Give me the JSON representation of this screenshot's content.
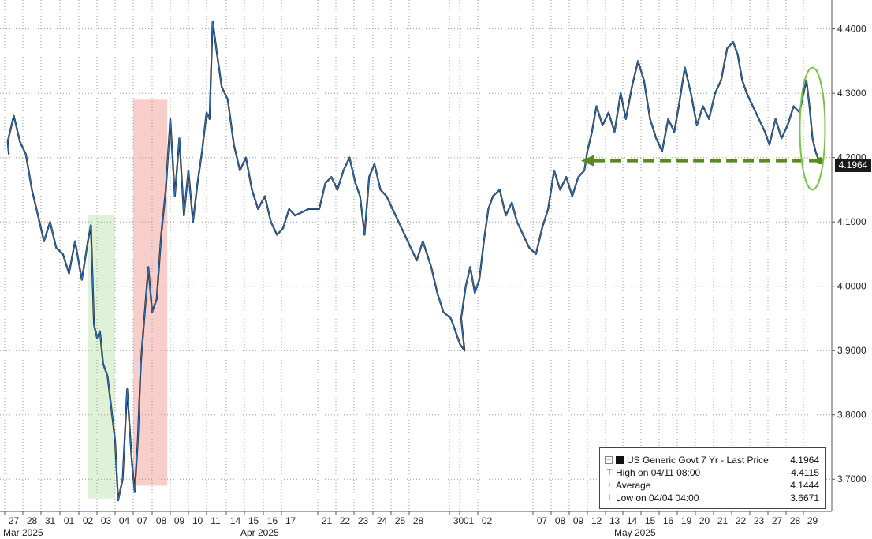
{
  "chart_data": {
    "type": "line",
    "series": [
      {
        "name": "US Generic Govt 7 Yr - Last Price",
        "color": "#2e6fb4",
        "points": [
          [
            "2025-03-26 20:00",
            4.205
          ],
          [
            "2025-03-27 04:00",
            4.225
          ],
          [
            "2025-03-27 12:00",
            4.265
          ],
          [
            "2025-03-27 20:00",
            4.225
          ],
          [
            "2025-03-28 04:00",
            4.205
          ],
          [
            "2025-03-28 12:00",
            4.15
          ],
          [
            "2025-03-28 20:00",
            4.11
          ],
          [
            "2025-03-31 04:00",
            4.07
          ],
          [
            "2025-03-31 12:00",
            4.1
          ],
          [
            "2025-03-31 20:00",
            4.06
          ],
          [
            "2025-04-01 04:00",
            4.05
          ],
          [
            "2025-04-01 12:00",
            4.02
          ],
          [
            "2025-04-01 20:00",
            4.07
          ],
          [
            "2025-04-02 04:00",
            4.01
          ],
          [
            "2025-04-02 12:00",
            4.07
          ],
          [
            "2025-04-02 16:00",
            4.095
          ],
          [
            "2025-04-02 20:00",
            3.94
          ],
          [
            "2025-04-03 00:00",
            3.92
          ],
          [
            "2025-04-03 04:00",
            3.93
          ],
          [
            "2025-04-03 08:00",
            3.88
          ],
          [
            "2025-04-03 14:00",
            3.86
          ],
          [
            "2025-04-03 20:00",
            3.8
          ],
          [
            "2025-04-04 00:00",
            3.76
          ],
          [
            "2025-04-04 04:00",
            3.6671
          ],
          [
            "2025-04-04 10:00",
            3.7
          ],
          [
            "2025-04-04 16:00",
            3.84
          ],
          [
            "2025-04-04 22:00",
            3.73
          ],
          [
            "2025-04-07 02:00",
            3.68
          ],
          [
            "2025-04-07 06:00",
            3.76
          ],
          [
            "2025-04-07 10:00",
            3.88
          ],
          [
            "2025-04-07 14:00",
            3.94
          ],
          [
            "2025-04-07 20:00",
            4.03
          ],
          [
            "2025-04-08 00:00",
            3.96
          ],
          [
            "2025-04-08 06:00",
            3.98
          ],
          [
            "2025-04-08 12:00",
            4.08
          ],
          [
            "2025-04-08 18:00",
            4.15
          ],
          [
            "2025-04-09 00:00",
            4.26
          ],
          [
            "2025-04-09 06:00",
            4.14
          ],
          [
            "2025-04-09 12:00",
            4.23
          ],
          [
            "2025-04-09 18:00",
            4.11
          ],
          [
            "2025-04-10 00:00",
            4.18
          ],
          [
            "2025-04-10 06:00",
            4.1
          ],
          [
            "2025-04-10 12:00",
            4.16
          ],
          [
            "2025-04-10 18:00",
            4.21
          ],
          [
            "2025-04-11 00:00",
            4.27
          ],
          [
            "2025-04-11 04:00",
            4.26
          ],
          [
            "2025-04-11 08:00",
            4.4115
          ],
          [
            "2025-04-11 14:00",
            4.36
          ],
          [
            "2025-04-11 20:00",
            4.31
          ],
          [
            "2025-04-14 02:00",
            4.29
          ],
          [
            "2025-04-14 10:00",
            4.22
          ],
          [
            "2025-04-14 18:00",
            4.18
          ],
          [
            "2025-04-15 02:00",
            4.2
          ],
          [
            "2025-04-15 10:00",
            4.15
          ],
          [
            "2025-04-15 18:00",
            4.12
          ],
          [
            "2025-04-16 02:00",
            4.14
          ],
          [
            "2025-04-16 10:00",
            4.1
          ],
          [
            "2025-04-16 18:00",
            4.08
          ],
          [
            "2025-04-17 02:00",
            4.09
          ],
          [
            "2025-04-17 10:00",
            4.12
          ],
          [
            "2025-04-17 18:00",
            4.11
          ],
          [
            "2025-04-18 12:00",
            4.12
          ],
          [
            "2025-04-21 02:00",
            4.12
          ],
          [
            "2025-04-21 10:00",
            4.16
          ],
          [
            "2025-04-21 18:00",
            4.17
          ],
          [
            "2025-04-22 02:00",
            4.15
          ],
          [
            "2025-04-22 10:00",
            4.18
          ],
          [
            "2025-04-22 18:00",
            4.2
          ],
          [
            "2025-04-23 02:00",
            4.16
          ],
          [
            "2025-04-23 08:00",
            4.14
          ],
          [
            "2025-04-23 14:00",
            4.08
          ],
          [
            "2025-04-23 20:00",
            4.17
          ],
          [
            "2025-04-24 02:00",
            4.19
          ],
          [
            "2025-04-24 10:00",
            4.15
          ],
          [
            "2025-04-24 18:00",
            4.14
          ],
          [
            "2025-04-25 02:00",
            4.12
          ],
          [
            "2025-04-25 10:00",
            4.1
          ],
          [
            "2025-04-25 18:00",
            4.08
          ],
          [
            "2025-04-28 02:00",
            4.06
          ],
          [
            "2025-04-28 10:00",
            4.04
          ],
          [
            "2025-04-28 18:00",
            4.07
          ],
          [
            "2025-04-29 02:00",
            4.03
          ],
          [
            "2025-04-29 10:00",
            3.99
          ],
          [
            "2025-04-29 18:00",
            3.96
          ],
          [
            "2025-04-30 02:00",
            3.95
          ],
          [
            "2025-04-30 08:00",
            3.93
          ],
          [
            "2025-04-30 14:00",
            3.91
          ],
          [
            "2025-04-30 20:00",
            3.9
          ],
          [
            "2025-05-01 02:00",
            3.95
          ],
          [
            "2025-05-01 08:00",
            4.0
          ],
          [
            "2025-05-01 14:00",
            4.03
          ],
          [
            "2025-05-01 20:00",
            3.99
          ],
          [
            "2025-05-02 02:00",
            4.01
          ],
          [
            "2025-05-02 08:00",
            4.07
          ],
          [
            "2025-05-02 14:00",
            4.12
          ],
          [
            "2025-05-02 20:00",
            4.14
          ],
          [
            "2025-05-05 04:00",
            4.15
          ],
          [
            "2025-05-05 12:00",
            4.11
          ],
          [
            "2025-05-05 20:00",
            4.13
          ],
          [
            "2025-05-06 04:00",
            4.1
          ],
          [
            "2025-05-06 12:00",
            4.08
          ],
          [
            "2025-05-06 20:00",
            4.06
          ],
          [
            "2025-05-07 04:00",
            4.05
          ],
          [
            "2025-05-07 12:00",
            4.09
          ],
          [
            "2025-05-07 20:00",
            4.12
          ],
          [
            "2025-05-08 04:00",
            4.18
          ],
          [
            "2025-05-08 12:00",
            4.15
          ],
          [
            "2025-05-08 20:00",
            4.17
          ],
          [
            "2025-05-09 04:00",
            4.14
          ],
          [
            "2025-05-09 12:00",
            4.17
          ],
          [
            "2025-05-09 20:00",
            4.18
          ],
          [
            "2025-05-12 00:00",
            4.21
          ],
          [
            "2025-05-12 06:00",
            4.24
          ],
          [
            "2025-05-12 12:00",
            4.28
          ],
          [
            "2025-05-12 20:00",
            4.25
          ],
          [
            "2025-05-13 04:00",
            4.27
          ],
          [
            "2025-05-13 12:00",
            4.24
          ],
          [
            "2025-05-13 20:00",
            4.3
          ],
          [
            "2025-05-14 04:00",
            4.26
          ],
          [
            "2025-05-14 12:00",
            4.31
          ],
          [
            "2025-05-14 20:00",
            4.35
          ],
          [
            "2025-05-15 04:00",
            4.32
          ],
          [
            "2025-05-15 12:00",
            4.26
          ],
          [
            "2025-05-15 20:00",
            4.23
          ],
          [
            "2025-05-16 04:00",
            4.21
          ],
          [
            "2025-05-16 12:00",
            4.26
          ],
          [
            "2025-05-16 20:00",
            4.24
          ],
          [
            "2025-05-19 02:00",
            4.28
          ],
          [
            "2025-05-19 10:00",
            4.34
          ],
          [
            "2025-05-19 18:00",
            4.3
          ],
          [
            "2025-05-20 02:00",
            4.25
          ],
          [
            "2025-05-20 10:00",
            4.28
          ],
          [
            "2025-05-20 18:00",
            4.26
          ],
          [
            "2025-05-21 02:00",
            4.3
          ],
          [
            "2025-05-21 10:00",
            4.32
          ],
          [
            "2025-05-21 18:00",
            4.37
          ],
          [
            "2025-05-22 02:00",
            4.38
          ],
          [
            "2025-05-22 08:00",
            4.36
          ],
          [
            "2025-05-22 14:00",
            4.32
          ],
          [
            "2025-05-22 20:00",
            4.3
          ],
          [
            "2025-05-23 04:00",
            4.28
          ],
          [
            "2025-05-23 12:00",
            4.26
          ],
          [
            "2025-05-23 20:00",
            4.24
          ],
          [
            "2025-05-27 02:00",
            4.22
          ],
          [
            "2025-05-27 10:00",
            4.26
          ],
          [
            "2025-05-27 18:00",
            4.23
          ],
          [
            "2025-05-28 02:00",
            4.25
          ],
          [
            "2025-05-28 10:00",
            4.28
          ],
          [
            "2025-05-28 18:00",
            4.27
          ],
          [
            "2025-05-29 00:00",
            4.3
          ],
          [
            "2025-05-29 04:00",
            4.32
          ],
          [
            "2025-05-29 08:00",
            4.28
          ],
          [
            "2025-05-29 12:00",
            4.23
          ],
          [
            "2025-05-29 16:00",
            4.21
          ],
          [
            "2025-05-29 20:00",
            4.1964
          ]
        ]
      }
    ],
    "xaxis": {
      "day_labels": [
        "27",
        "28",
        "31",
        "01",
        "02",
        "03",
        "04",
        "07",
        "08",
        "09",
        "10",
        "11",
        "14",
        "15",
        "16",
        "17",
        "21",
        "22",
        "23",
        "24",
        "25",
        "28",
        "30",
        "01",
        "02",
        "07",
        "08",
        "09",
        "12",
        "13",
        "14",
        "15",
        "16",
        "19",
        "20",
        "21",
        "22",
        "23",
        "27",
        "28",
        "29"
      ],
      "day_dates": [
        "2025-03-27",
        "2025-03-28",
        "2025-03-31",
        "2025-04-01",
        "2025-04-02",
        "2025-04-03",
        "2025-04-04",
        "2025-04-07",
        "2025-04-08",
        "2025-04-09",
        "2025-04-10",
        "2025-04-11",
        "2025-04-14",
        "2025-04-15",
        "2025-04-16",
        "2025-04-17",
        "2025-04-21",
        "2025-04-22",
        "2025-04-23",
        "2025-04-24",
        "2025-04-25",
        "2025-04-28",
        "2025-04-30",
        "2025-05-01",
        "2025-05-02",
        "2025-05-07",
        "2025-05-08",
        "2025-05-09",
        "2025-05-12",
        "2025-05-13",
        "2025-05-14",
        "2025-05-15",
        "2025-05-16",
        "2025-05-19",
        "2025-05-20",
        "2025-05-21",
        "2025-05-22",
        "2025-05-23",
        "2025-05-27",
        "2025-05-28",
        "2025-05-29"
      ],
      "month_labels": [
        {
          "label": "Mar 2025",
          "date": "2025-03-27"
        },
        {
          "label": "Apr 2025",
          "date": "2025-04-15"
        },
        {
          "label": "May 2025",
          "date": "2025-05-15"
        }
      ]
    },
    "yaxis": {
      "position": "right",
      "ticks": [
        "3.7000",
        "3.8000",
        "3.9000",
        "4.0000",
        "4.1000",
        "4.2000",
        "4.3000",
        "4.4000"
      ],
      "range": [
        3.65,
        4.445
      ]
    },
    "grid": true,
    "highlight_bands": [
      {
        "color": "#d9efcf",
        "from": "2025-04-02 12:00",
        "to": "2025-04-04 00:00",
        "ymin": 3.67,
        "ymax": 4.11
      },
      {
        "color": "#f7c5c2",
        "from": "2025-04-07 00:00",
        "to": "2025-04-08 20:00",
        "ymin": 3.69,
        "ymax": 4.29
      }
    ],
    "annotations": {
      "reference_arrow": {
        "color": "#5a8a1e",
        "value": 4.1964,
        "from": "2025-05-29 22:00",
        "to": "2025-05-12 00:00"
      },
      "ellipse": {
        "color": "#7cc24a",
        "center_date": "2025-05-29 12:00",
        "center_value": 4.245,
        "value_half_span": 0.095
      }
    },
    "last_price_tag": "4.1964",
    "legend": {
      "placement": "bottom-right",
      "title": "US Generic Govt 7 Yr - Last Price",
      "title_value": "4.1964",
      "rows": [
        {
          "glyph": "T",
          "label": "High on 04/11 08:00",
          "value": "4.4115"
        },
        {
          "glyph": "+",
          "label": "Average",
          "value": "4.1444"
        },
        {
          "glyph": "⊥",
          "label": "Low on 04/04 04:00",
          "value": "3.6671"
        }
      ]
    }
  }
}
